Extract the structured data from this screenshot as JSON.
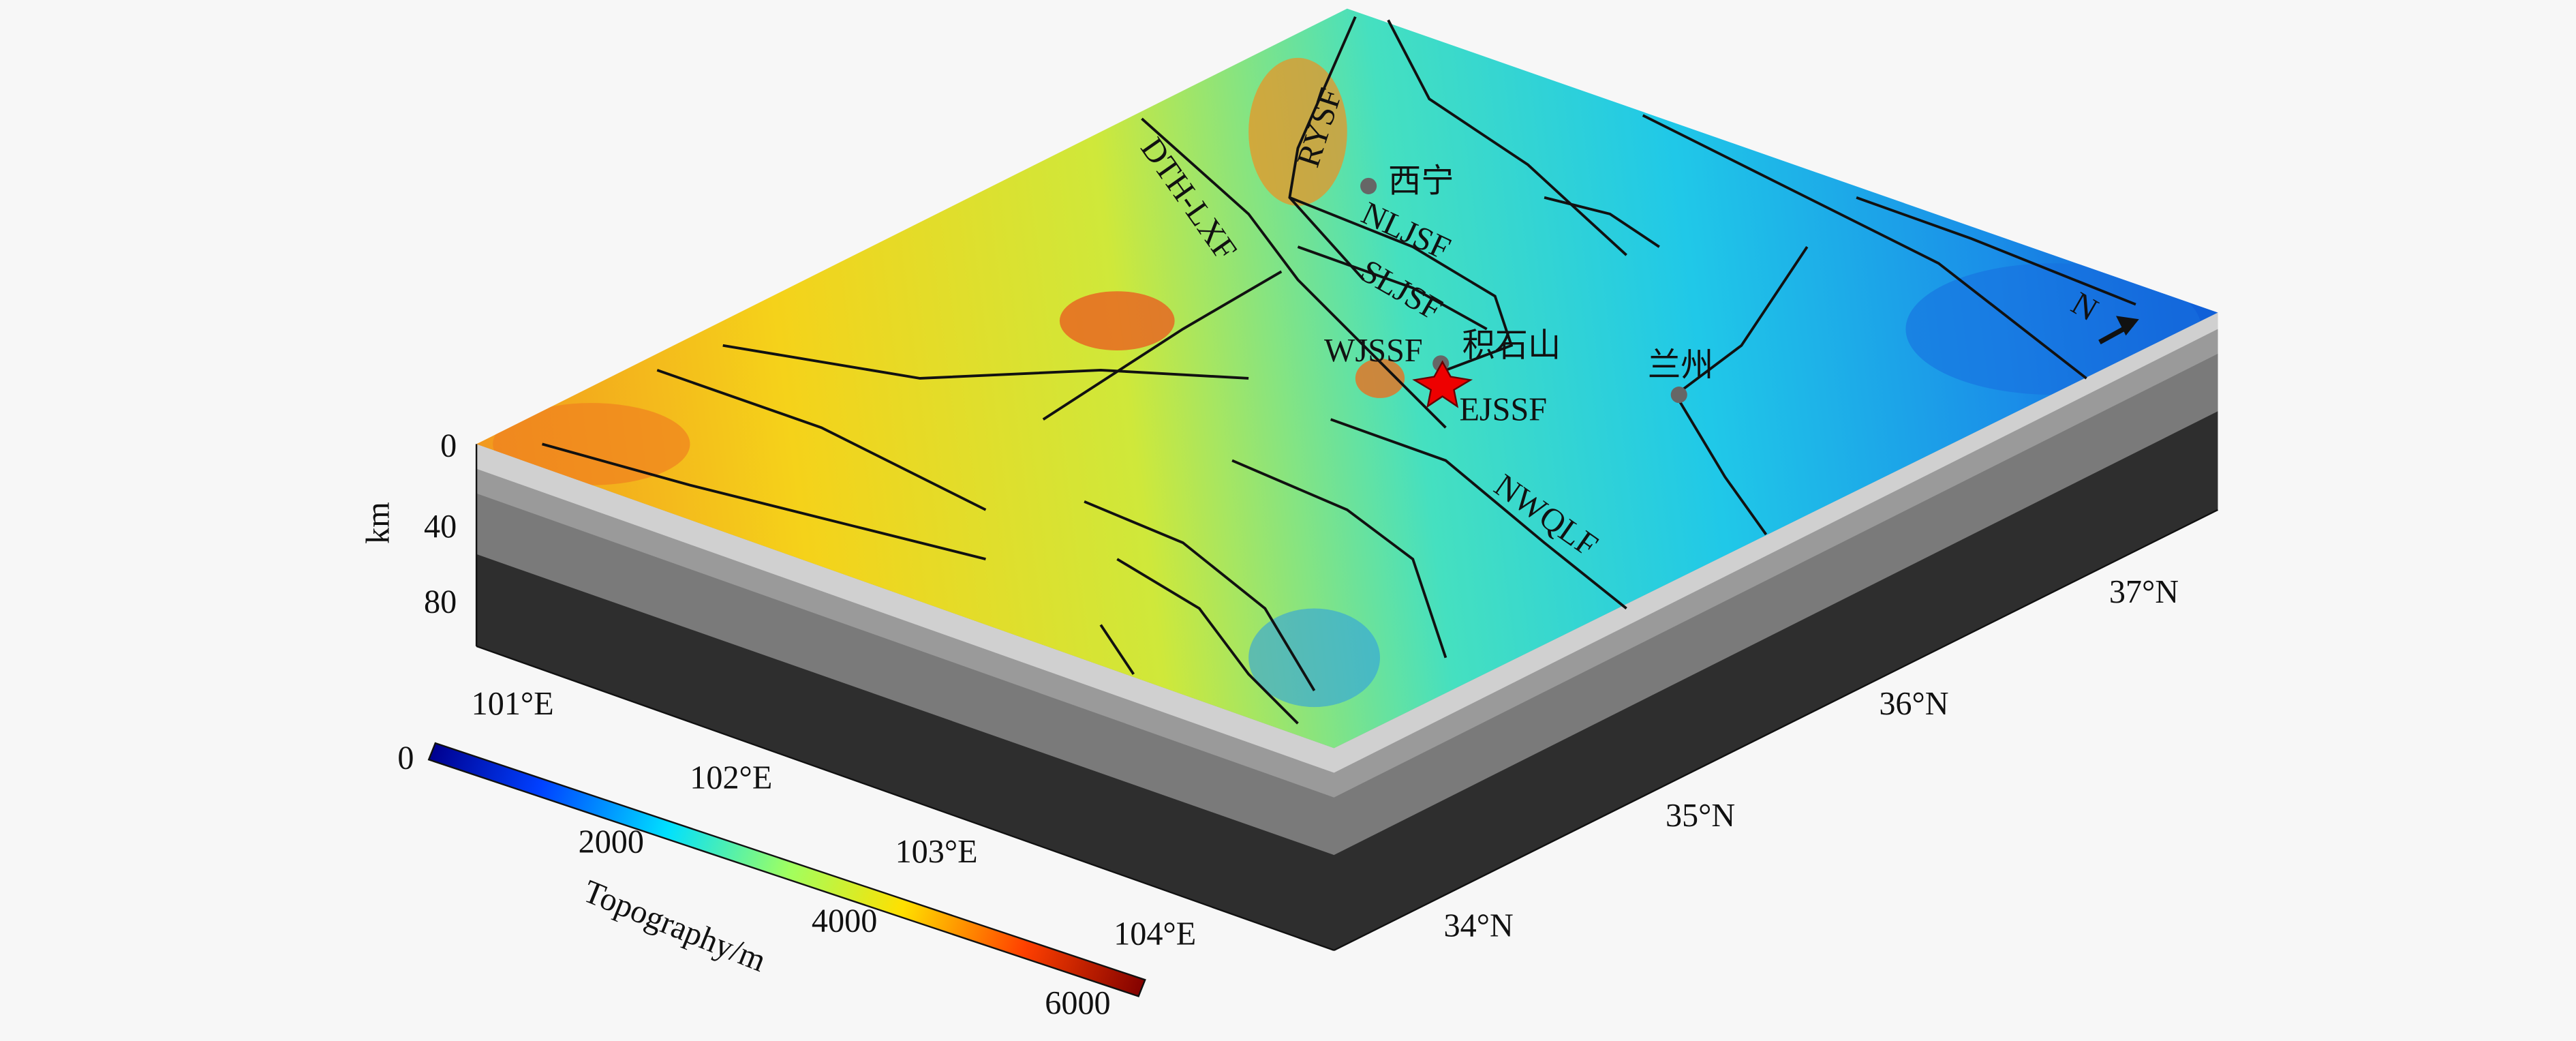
{
  "depth_axis": {
    "label": "km",
    "ticks": [
      0,
      40,
      80
    ]
  },
  "longitude_labels": [
    "101°E",
    "102°E",
    "103°E",
    "104°E"
  ],
  "latitude_labels": [
    "34°N",
    "35°N",
    "36°N",
    "37°N"
  ],
  "colorbar": {
    "label": "Topography/m",
    "ticks": [
      0,
      2000,
      4000,
      6000
    ]
  },
  "cities": [
    "西宁",
    "积石山",
    "兰州"
  ],
  "faults": [
    "RYSF",
    "DTH-LXF",
    "NLJSF",
    "SLJSF",
    "WJSSF",
    "EJSSF",
    "NWQLF"
  ],
  "north_label": "N"
}
